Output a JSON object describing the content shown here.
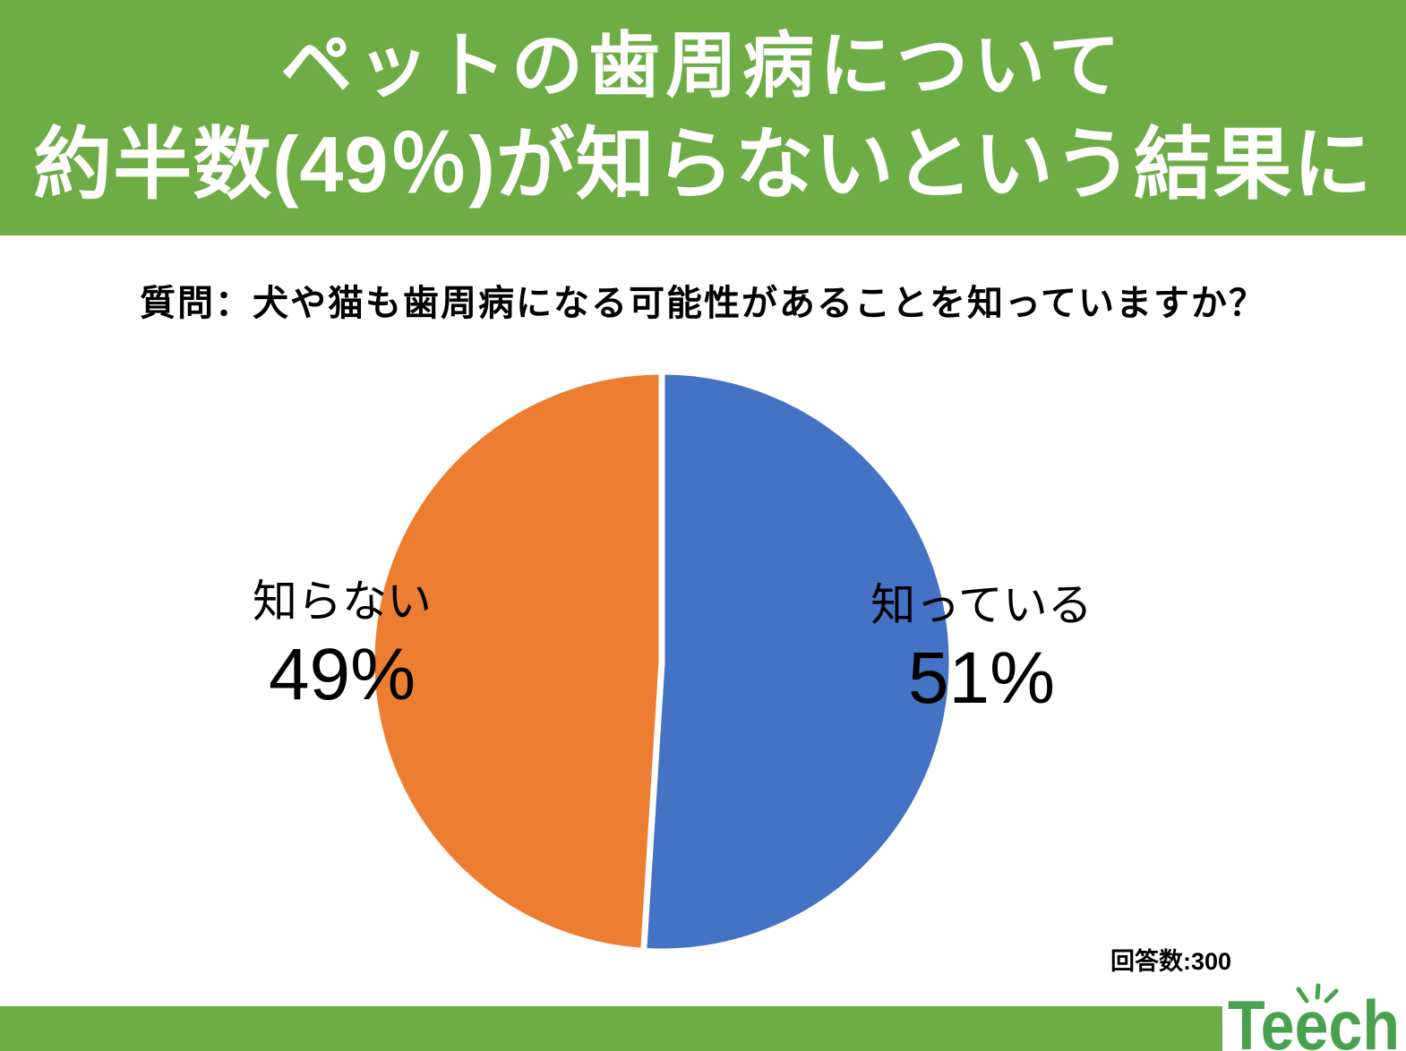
{
  "header": {
    "bg_color": "#6eac45",
    "text_color": "#ffffff",
    "line1": "ペットの歯周病について",
    "line2": "約半数(49％)が知らないという結果に"
  },
  "question": {
    "text": "質問：犬や猫も歯周病になる可能性があることを知っていますか？"
  },
  "chart_data": {
    "type": "pie",
    "question": "犬や猫も歯周病になる可能性があることを知っていますか？",
    "start_angle_deg": -90,
    "direction": "clockwise",
    "separator_color": "#ffffff",
    "slices": [
      {
        "key": "know",
        "label": "知っている",
        "value": 51,
        "display": "51%",
        "color": "#4472C4"
      },
      {
        "key": "dont-know",
        "label": "知らない",
        "value": 49,
        "display": "49%",
        "color": "#ED7D31"
      }
    ],
    "respondents": 300
  },
  "footnote": {
    "text": "回答数:300"
  },
  "footer": {
    "bar_color": "#6eac45",
    "logo_text": "Teech",
    "logo_color": "#47a14f"
  }
}
